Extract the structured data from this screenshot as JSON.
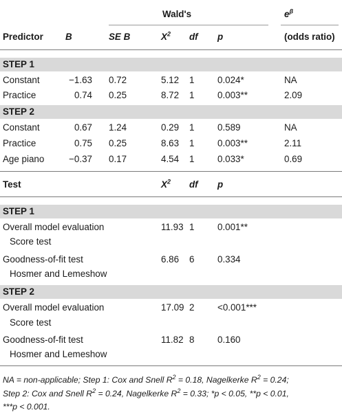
{
  "header": {
    "walds": "Wald's",
    "e_base": "e",
    "e_sup": "β",
    "predictor": "Predictor",
    "b": "B",
    "seb": "SE B",
    "x": "X",
    "x_sup": "2",
    "df": "df",
    "p": "p",
    "odds": "(odds ratio)"
  },
  "step1_label": "STEP 1",
  "step2_label": "STEP 2",
  "step1_rows": [
    {
      "predictor": "Constant",
      "b": "−1.63",
      "seb": "0.72",
      "x2": "5.12",
      "df": "1",
      "p": "0.024*",
      "odds": "NA"
    },
    {
      "predictor": "Practice",
      "b": "0.74",
      "seb": "0.25",
      "x2": "8.72",
      "df": "1",
      "p": "0.003**",
      "odds": "2.09"
    }
  ],
  "step2_rows": [
    {
      "predictor": "Constant",
      "b": "0.67",
      "seb": "1.24",
      "x2": "0.29",
      "df": "1",
      "p": "0.589",
      "odds": "NA"
    },
    {
      "predictor": "Practice",
      "b": "0.75",
      "seb": "0.25",
      "x2": "8.63",
      "df": "1",
      "p": "0.003**",
      "odds": "2.11"
    },
    {
      "predictor": "Age piano",
      "b": "−0.37",
      "seb": "0.17",
      "x2": "4.54",
      "df": "1",
      "p": "0.033*",
      "odds": "0.69"
    }
  ],
  "test_header": {
    "test": "Test",
    "x": "X",
    "x_sup": "2",
    "df": "df",
    "p": "p"
  },
  "test_step1_label": "STEP 1",
  "test_step2_label": "STEP 2",
  "test_step1_rows": [
    {
      "line1": "Overall model evaluation",
      "line2": "Score test",
      "x2": "11.93",
      "df": "1",
      "p": "0.001**"
    },
    {
      "line1": "Goodness-of-fit test",
      "line2": "Hosmer and Lemeshow",
      "x2": "6.86",
      "df": "6",
      "p": "0.334"
    }
  ],
  "test_step2_rows": [
    {
      "line1": "Overall model evaluation",
      "line2": "Score test",
      "x2": "17.09",
      "df": "2",
      "p": "<0.001***"
    },
    {
      "line1": "Goodness-of-fit test",
      "line2": "Hosmer and Lemeshow",
      "x2": "11.82",
      "df": "8",
      "p": "0.160"
    }
  ],
  "note": {
    "line1": "NA = non-applicable; Step 1: Cox and Snell R",
    "r2a": "2",
    "line1b": " = 0.18, Nagelkerke R",
    "r2b": "2",
    "line1c": " = 0.24;",
    "line2": "Step 2: Cox and Snell R",
    "r2c": "2",
    "line2b": " = 0.24, Nagelkerke R",
    "r2d": "2",
    "line2c": " = 0.33; *p < 0.05, **p < 0.01,",
    "line3": "***p < 0.001."
  }
}
